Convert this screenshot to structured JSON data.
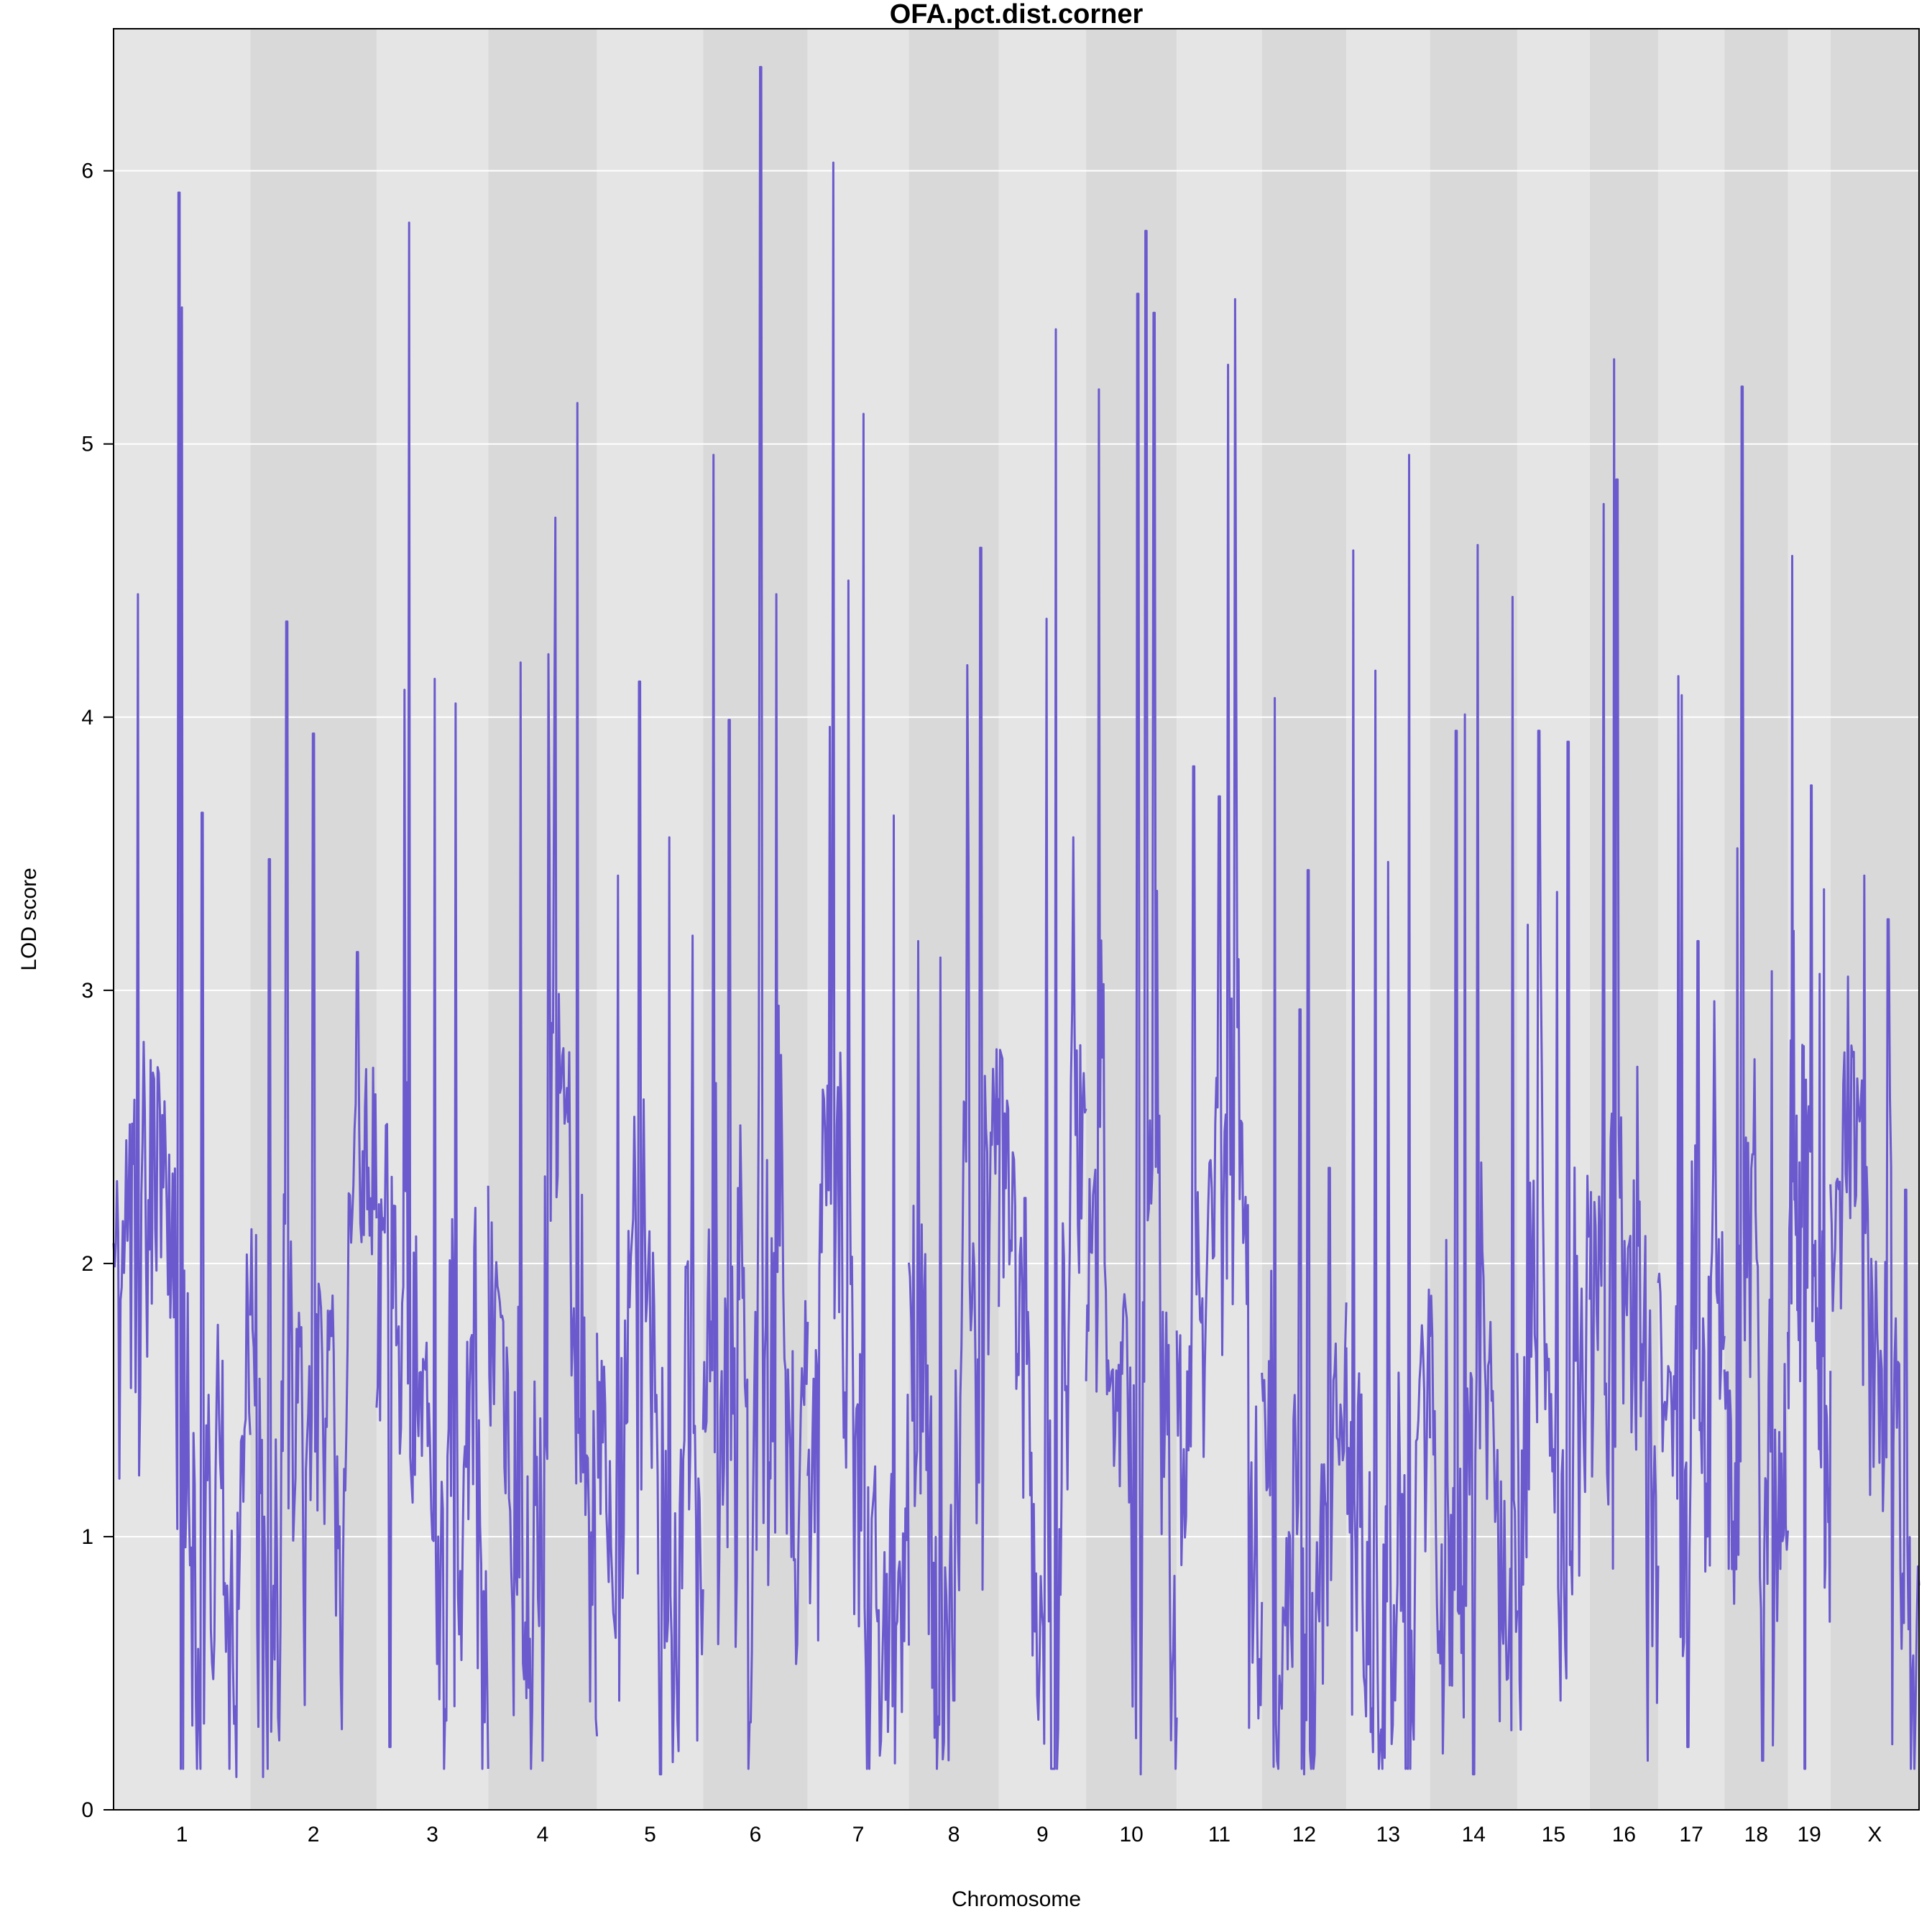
{
  "chart_data": {
    "type": "line",
    "title": "OFA.pct.dist.corner",
    "xlabel": "Chromosome",
    "ylabel": "LOD score",
    "ylim": [
      0,
      6.52
    ],
    "yticks": [
      0,
      1,
      2,
      3,
      4,
      5,
      6
    ],
    "grid": true,
    "line_color": "#6a5acd",
    "band_colors": [
      "#e5e5e5",
      "#d9d9d9"
    ],
    "chromosomes": [
      {
        "name": "1",
        "length": 196,
        "peaks": [
          [
            0.48,
            5.92
          ],
          [
            0.5,
            5.5
          ],
          [
            0.18,
            4.45
          ],
          [
            0.65,
            3.65
          ],
          [
            0.9,
            0.12
          ]
        ]
      },
      {
        "name": "2",
        "length": 181,
        "peaks": [
          [
            0.29,
            4.35
          ],
          [
            0.5,
            3.94
          ],
          [
            0.15,
            3.48
          ],
          [
            0.85,
            3.14
          ],
          [
            0.1,
            0.12
          ]
        ]
      },
      {
        "name": "3",
        "length": 160,
        "peaks": [
          [
            0.29,
            5.81
          ],
          [
            0.52,
            4.14
          ],
          [
            0.71,
            4.05
          ],
          [
            0.25,
            4.1
          ],
          [
            0.12,
            0.23
          ]
        ]
      },
      {
        "name": "4",
        "length": 156,
        "peaks": [
          [
            0.82,
            5.15
          ],
          [
            0.62,
            4.73
          ],
          [
            0.3,
            4.2
          ],
          [
            0.55,
            4.23
          ],
          [
            0.5,
            0.18
          ]
        ]
      },
      {
        "name": "5",
        "length": 152,
        "peaks": [
          [
            0.4,
            4.13
          ],
          [
            0.68,
            3.56
          ],
          [
            0.2,
            3.42
          ],
          [
            0.9,
            3.2
          ],
          [
            0.6,
            0.13
          ]
        ]
      },
      {
        "name": "6",
        "length": 150,
        "peaks": [
          [
            0.55,
            6.38
          ],
          [
            0.1,
            4.96
          ],
          [
            0.7,
            4.45
          ],
          [
            0.25,
            3.99
          ],
          [
            0.45,
            0.32
          ]
        ]
      },
      {
        "name": "7",
        "length": 145,
        "peaks": [
          [
            0.25,
            6.03
          ],
          [
            0.55,
            5.11
          ],
          [
            0.4,
            4.5
          ],
          [
            0.85,
            3.64
          ],
          [
            0.1,
            0.62
          ]
        ]
      },
      {
        "name": "8",
        "length": 129,
        "peaks": [
          [
            0.8,
            4.62
          ],
          [
            0.65,
            4.19
          ],
          [
            0.35,
            3.12
          ],
          [
            0.1,
            3.18
          ],
          [
            0.5,
            0.4
          ]
        ]
      },
      {
        "name": "9",
        "length": 125,
        "peaks": [
          [
            0.65,
            5.42
          ],
          [
            0.55,
            4.36
          ],
          [
            0.85,
            3.56
          ],
          [
            0.3,
            2.24
          ],
          [
            0.45,
            0.33
          ]
        ]
      },
      {
        "name": "10",
        "length": 130,
        "peaks": [
          [
            0.66,
            5.78
          ],
          [
            0.14,
            5.2
          ],
          [
            0.57,
            5.55
          ],
          [
            0.75,
            5.48
          ],
          [
            0.6,
            0.13
          ]
        ]
      },
      {
        "name": "11",
        "length": 122,
        "peaks": [
          [
            0.68,
            5.53
          ],
          [
            0.6,
            5.29
          ],
          [
            0.2,
            3.82
          ],
          [
            0.5,
            3.71
          ],
          [
            0.85,
            0.3
          ]
        ]
      },
      {
        "name": "12",
        "length": 121,
        "peaks": [
          [
            0.15,
            4.07
          ],
          [
            0.55,
            3.44
          ],
          [
            0.45,
            2.93
          ],
          [
            0.8,
            2.35
          ],
          [
            0.5,
            0.13
          ]
        ]
      },
      {
        "name": "13",
        "length": 120,
        "peaks": [
          [
            0.08,
            4.61
          ],
          [
            0.75,
            4.96
          ],
          [
            0.35,
            4.17
          ],
          [
            0.5,
            3.47
          ],
          [
            0.4,
            0.25
          ]
        ]
      },
      {
        "name": "14",
        "length": 125,
        "peaks": [
          [
            0.55,
            4.63
          ],
          [
            0.95,
            4.44
          ],
          [
            0.4,
            4.01
          ],
          [
            0.3,
            3.95
          ],
          [
            0.5,
            0.13
          ]
        ]
      },
      {
        "name": "15",
        "length": 104,
        "peaks": [
          [
            0.3,
            3.95
          ],
          [
            0.7,
            3.91
          ],
          [
            0.55,
            3.36
          ],
          [
            0.15,
            3.24
          ],
          [
            0.6,
            0.4
          ]
        ]
      },
      {
        "name": "16",
        "length": 98,
        "peaks": [
          [
            0.35,
            5.31
          ],
          [
            0.4,
            4.87
          ],
          [
            0.2,
            4.78
          ],
          [
            0.7,
            2.72
          ],
          [
            0.85,
            0.18
          ]
        ]
      },
      {
        "name": "17",
        "length": 95,
        "peaks": [
          [
            0.3,
            4.15
          ],
          [
            0.35,
            4.08
          ],
          [
            0.6,
            3.18
          ],
          [
            0.85,
            2.96
          ],
          [
            0.45,
            0.23
          ]
        ]
      },
      {
        "name": "18",
        "length": 91,
        "peaks": [
          [
            0.28,
            5.21
          ],
          [
            0.2,
            3.52
          ],
          [
            0.75,
            3.07
          ],
          [
            0.45,
            2.4
          ],
          [
            0.6,
            0.18
          ]
        ]
      },
      {
        "name": "19",
        "length": 61,
        "peaks": [
          [
            0.1,
            4.59
          ],
          [
            0.55,
            3.75
          ],
          [
            0.85,
            3.37
          ],
          [
            0.75,
            3.06
          ],
          [
            0.4,
            0.15
          ]
        ]
      },
      {
        "name": "X",
        "length": 127,
        "peaks": [
          [
            0.38,
            3.42
          ],
          [
            0.65,
            3.26
          ],
          [
            0.2,
            3.05
          ],
          [
            0.85,
            2.27
          ],
          [
            0.7,
            0.24
          ]
        ]
      }
    ]
  }
}
